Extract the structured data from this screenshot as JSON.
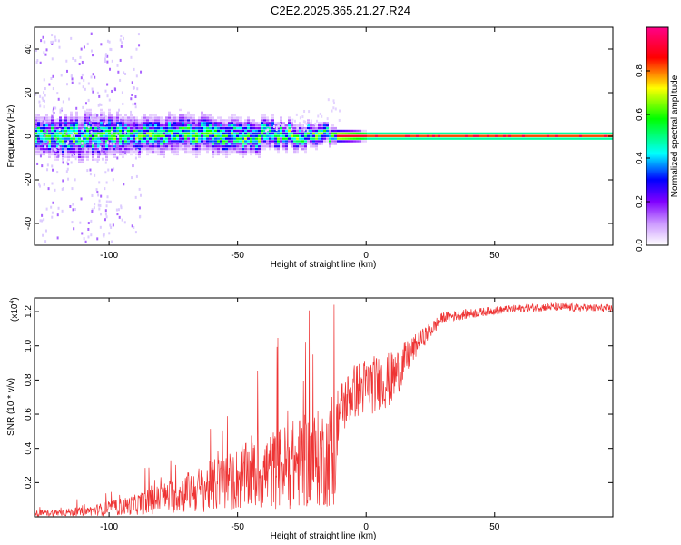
{
  "figure": {
    "title": "C2E2.2025.365.21.27.R24"
  },
  "chart_data": [
    {
      "type": "heatmap",
      "title": "C2E2.2025.365.21.27.R24",
      "xlabel": "Height of straight line (km)",
      "ylabel": "Frequency (Hz)",
      "xlim": [
        -129,
        96
      ],
      "ylim": [
        -50,
        50
      ],
      "xticks": [
        -100,
        -50,
        0,
        50
      ],
      "yticks": [
        -40,
        -20,
        0,
        20,
        40
      ],
      "ridge": {
        "description_points_x": [
          -129,
          -110,
          -90,
          -70,
          -50,
          -30,
          -12,
          0,
          20,
          50,
          96
        ],
        "center_frequency": [
          0,
          0,
          0,
          1,
          0,
          1,
          0,
          0,
          0,
          0,
          0
        ],
        "half_width": [
          4,
          5,
          4,
          4,
          4,
          3,
          2,
          1.5,
          1.5,
          1.5,
          1.5
        ]
      },
      "colorbar": {
        "label": "Normalized spectral amplitude",
        "range": [
          0,
          1
        ],
        "ticks": [
          "0.0",
          "0.2",
          "0.4",
          "0.6",
          "0.8"
        ],
        "colors": [
          "#ffffff",
          "#cc99ff",
          "#8000ff",
          "#0000ff",
          "#00ffff",
          "#00ff00",
          "#ffff00",
          "#ff0000",
          "#ff0088"
        ]
      }
    },
    {
      "type": "line",
      "xlabel": "Height of straight line (km)",
      "ylabel": "SNR (10 * v/v)",
      "scale_label": "(x10",
      "scale_exponent": "4",
      "xlim": [
        -129,
        96
      ],
      "ylim": [
        0,
        1.28
      ],
      "xticks": [
        -100,
        -50,
        0,
        50
      ],
      "yticks": [
        "0.2",
        "0.4",
        "0.6",
        "0.8",
        "1.0",
        "1.2"
      ],
      "ytick_values": [
        0.2,
        0.4,
        0.6,
        0.8,
        1.0,
        1.2
      ],
      "series": [
        {
          "name": "SNR",
          "color": "#ee3333",
          "x": [
            -129,
            -110,
            -90,
            -70,
            -50,
            -35,
            -25,
            -15,
            -12,
            -11,
            -5,
            0,
            10,
            20,
            30,
            50,
            70,
            96
          ],
          "base": [
            0.02,
            0.03,
            0.07,
            0.14,
            0.22,
            0.28,
            0.32,
            0.35,
            0.38,
            0.62,
            0.75,
            0.78,
            0.82,
            1.02,
            1.17,
            1.21,
            1.23,
            1.22
          ],
          "spread": [
            0.03,
            0.04,
            0.08,
            0.15,
            0.22,
            0.34,
            0.45,
            0.5,
            0.4,
            0.22,
            0.2,
            0.22,
            0.2,
            0.08,
            0.04,
            0.03,
            0.03,
            0.03
          ]
        }
      ]
    }
  ]
}
